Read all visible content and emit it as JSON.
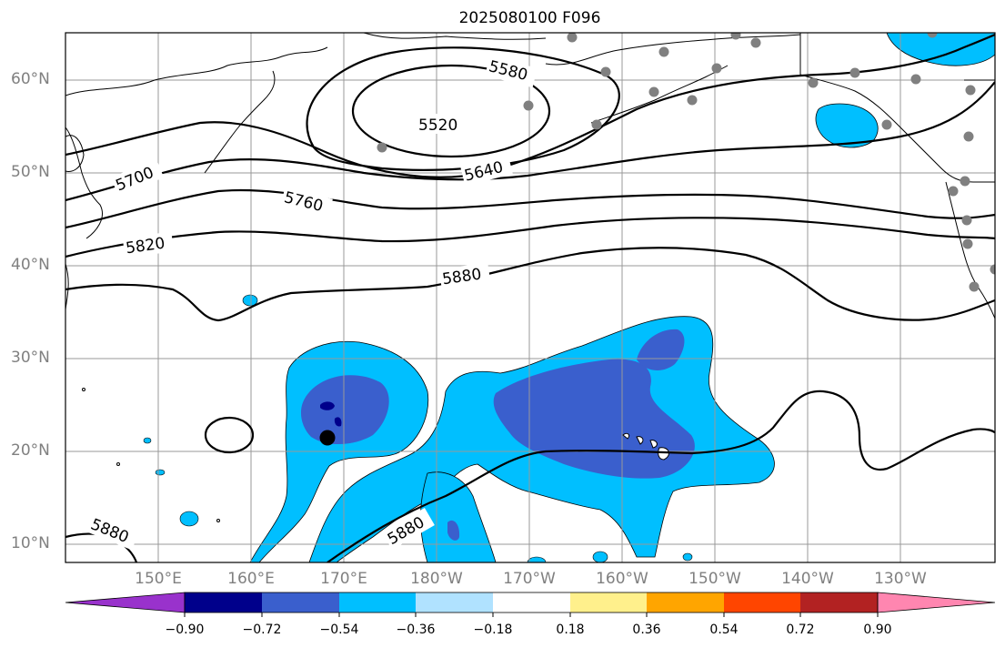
{
  "title": "2025080100 F096",
  "map": {
    "lat_labels": [
      "60°N",
      "50°N",
      "40°N",
      "30°N",
      "20°N",
      "10°N"
    ],
    "lon_labels": [
      "150°E",
      "160°E",
      "170°E",
      "180°W",
      "170°W",
      "160°W",
      "150°W",
      "140°W",
      "130°W"
    ],
    "contour_labels": [
      "5520",
      "5580",
      "5640",
      "5700",
      "5760",
      "5820",
      "5880",
      "5880",
      "5880"
    ],
    "label_color": "#808080",
    "contour_color": "#000000"
  },
  "colorbar": {
    "tick_labels": [
      "−0.90",
      "−0.72",
      "−0.54",
      "−0.36",
      "−0.18",
      "0.18",
      "0.36",
      "0.54",
      "0.72",
      "0.90"
    ],
    "colors": [
      "#9932cc",
      "#00008b",
      "#3a5fcd",
      "#00bfff",
      "#b0e2ff",
      "#ffffff",
      "#fff08c",
      "#ffa500",
      "#ff4500",
      "#b22222",
      "#ff86b0"
    ]
  }
}
